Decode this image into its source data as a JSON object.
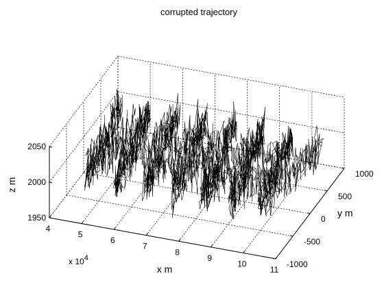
{
  "chart_data": {
    "type": "line",
    "projection": "3d",
    "title": "corrupted trajectory",
    "xlabel": "x  m",
    "ylabel": "y  m",
    "zlabel": "z  m",
    "x_multiplier_label": "x 10",
    "x_multiplier_exponent": "4",
    "xlim": [
      4,
      11
    ],
    "ylim": [
      -1000,
      1000
    ],
    "zlim": [
      1950,
      2050
    ],
    "xticks": [
      "4",
      "5",
      "6",
      "7",
      "8",
      "9",
      "10",
      "11"
    ],
    "yticks": [
      "-1000",
      "-500",
      "0",
      "500",
      "1000"
    ],
    "zticks": [
      "1950",
      "2000",
      "2050"
    ],
    "grid": true,
    "colors": {
      "line": "#000000",
      "axis": "#000000",
      "grid": "#000000",
      "background": "#ffffff"
    },
    "series": [
      {
        "style": "noisy zig-zag trajectory",
        "x_start": 4.4,
        "x_end": 10.6,
        "y_min": -700,
        "y_max": 700,
        "z_center": 2000,
        "z_noise": 22,
        "y_noise": 70,
        "sweeps": 14,
        "samples": 2600
      }
    ]
  }
}
